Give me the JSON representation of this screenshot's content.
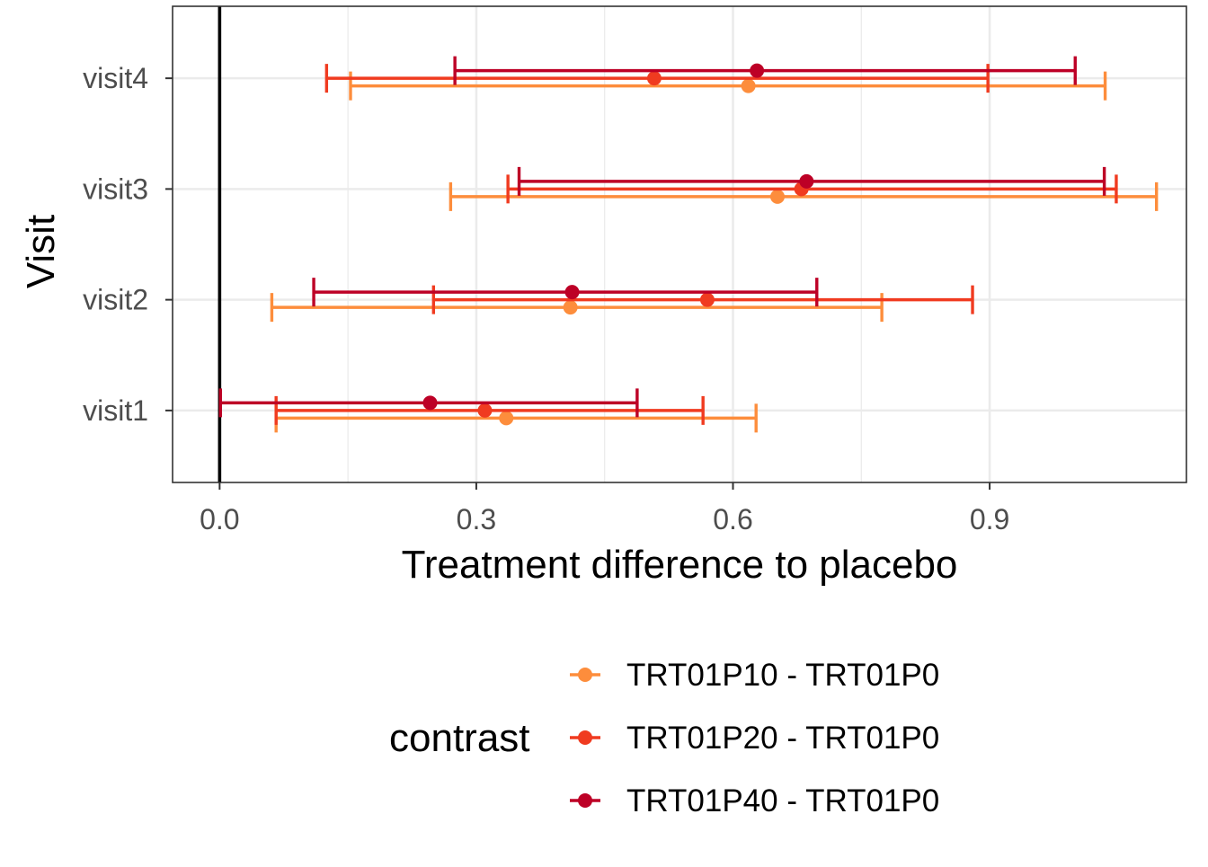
{
  "chart_data": {
    "type": "forest",
    "xlabel": "Treatment difference to placebo",
    "ylabel": "Visit",
    "xlim": [
      -0.055,
      1.13
    ],
    "x_ticks": [
      "0.0",
      "0.3",
      "0.6",
      "0.9"
    ],
    "x_tick_values": [
      0.0,
      0.3,
      0.6,
      0.9
    ],
    "categories": [
      "visit1",
      "visit2",
      "visit3",
      "visit4"
    ],
    "reference_line": 0,
    "grid": true,
    "legend": {
      "title": "contrast",
      "position": "bottom"
    },
    "series": [
      {
        "name": "TRT01P10 - TRT01P0",
        "color": "#FD8D3C",
        "points": [
          {
            "visit": "visit1",
            "estimate": 0.335,
            "lower": 0.066,
            "upper": 0.627
          },
          {
            "visit": "visit2",
            "estimate": 0.41,
            "lower": 0.061,
            "upper": 0.774
          },
          {
            "visit": "visit3",
            "estimate": 0.652,
            "lower": 0.27,
            "upper": 1.095
          },
          {
            "visit": "visit4",
            "estimate": 0.618,
            "lower": 0.153,
            "upper": 1.035
          }
        ]
      },
      {
        "name": "TRT01P20 - TRT01P0",
        "color": "#F03B20",
        "points": [
          {
            "visit": "visit1",
            "estimate": 0.31,
            "lower": 0.066,
            "upper": 0.565
          },
          {
            "visit": "visit2",
            "estimate": 0.57,
            "lower": 0.25,
            "upper": 0.88
          },
          {
            "visit": "visit3",
            "estimate": 0.68,
            "lower": 0.337,
            "upper": 1.048
          },
          {
            "visit": "visit4",
            "estimate": 0.508,
            "lower": 0.125,
            "upper": 0.898
          }
        ]
      },
      {
        "name": "TRT01P40 - TRT01P0",
        "color": "#BD0026",
        "points": [
          {
            "visit": "visit1",
            "estimate": 0.246,
            "lower": 0.001,
            "upper": 0.488
          },
          {
            "visit": "visit2",
            "estimate": 0.412,
            "lower": 0.11,
            "upper": 0.698
          },
          {
            "visit": "visit3",
            "estimate": 0.686,
            "lower": 0.35,
            "upper": 1.034
          },
          {
            "visit": "visit4",
            "estimate": 0.628,
            "lower": 0.275,
            "upper": 1.0
          }
        ]
      }
    ]
  }
}
